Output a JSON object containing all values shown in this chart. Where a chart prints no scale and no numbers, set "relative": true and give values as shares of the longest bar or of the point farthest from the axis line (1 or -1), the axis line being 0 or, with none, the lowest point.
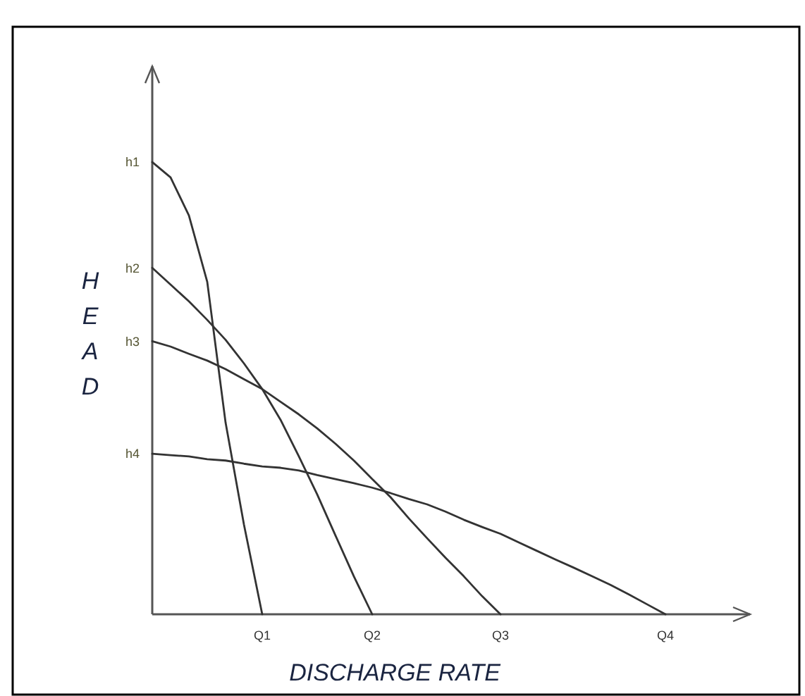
{
  "chart_data": {
    "type": "line",
    "relative": true,
    "xlabel": "DISCHARGE RATE",
    "ylabel": "HEAD",
    "marker": "none",
    "line_style": "solid",
    "categories": [
      null,
      null,
      null,
      null,
      null,
      null,
      "Q1",
      null,
      null,
      null,
      null,
      null,
      "Q2",
      null,
      null,
      null,
      null,
      null,
      null,
      "Q3",
      null,
      null,
      null,
      null,
      null,
      null,
      null,
      null,
      "Q4",
      null,
      null,
      null,
      null
    ],
    "series": [
      {
        "name": "h1",
        "color": "#333333",
        "values": [
          1,
          0.966,
          0.882,
          0.735,
          0.424,
          0.199,
          0,
          null,
          null,
          null,
          null,
          null,
          null,
          null,
          null,
          null,
          null,
          null,
          null,
          null,
          null,
          null,
          null,
          null,
          null,
          null,
          null,
          null,
          null,
          null,
          null,
          null,
          null
        ]
      },
      {
        "name": "h2",
        "color": "#333333",
        "values": [
          0.766,
          0.729,
          0.692,
          0.651,
          0.607,
          0.555,
          0.498,
          0.43,
          0.349,
          0.265,
          0.174,
          0.084,
          0,
          null,
          null,
          null,
          null,
          null,
          null,
          null,
          null,
          null,
          null,
          null,
          null,
          null,
          null,
          null,
          null,
          null,
          null,
          null,
          null
        ]
      },
      {
        "name": "h3",
        "color": "#333333",
        "values": [
          0.604,
          0.592,
          0.576,
          0.561,
          0.542,
          0.52,
          0.498,
          0.47,
          0.442,
          0.411,
          0.377,
          0.34,
          0.299,
          0.259,
          0.212,
          0.168,
          0.125,
          0.084,
          0.04,
          0,
          null,
          null,
          null,
          null,
          null,
          null,
          null,
          null,
          null,
          null,
          null,
          null,
          null
        ]
      },
      {
        "name": "h4",
        "color": "#333333",
        "values": [
          0.355,
          0.352,
          0.349,
          0.343,
          0.34,
          0.333,
          0.327,
          0.324,
          0.318,
          0.308,
          0.299,
          0.29,
          0.28,
          0.268,
          0.255,
          0.243,
          0.227,
          0.209,
          0.193,
          0.178,
          0.159,
          0.14,
          0.121,
          0.103,
          0.084,
          0.065,
          0.044,
          0.022,
          0,
          null,
          null,
          null,
          null
        ]
      }
    ]
  }
}
